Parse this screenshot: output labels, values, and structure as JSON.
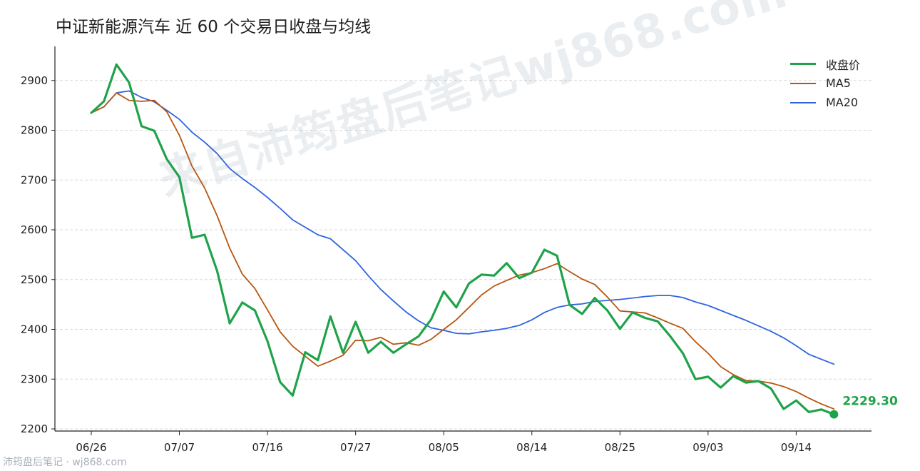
{
  "title": "中证新能源汽车 近 60 个交易日收盘与均线",
  "watermark": "来自沛筠盘后笔记wj868.com",
  "footer": "沛筠盘后笔记 · wj868.com",
  "colors": {
    "close": "#1fa34a",
    "ma5": "#b8560f",
    "ma20": "#2e64e0",
    "grid": "#d9d9d9"
  },
  "chart_data": {
    "type": "line",
    "title": "中证新能源汽车 近 60 个交易日收盘与均线",
    "xlabel": "",
    "ylabel": "",
    "ylim": [
      2190,
      2970
    ],
    "yticks": [
      2200,
      2300,
      2400,
      2500,
      2600,
      2700,
      2800,
      2900
    ],
    "xticks": [
      {
        "i": 0,
        "label": "06/26"
      },
      {
        "i": 7,
        "label": "07/07"
      },
      {
        "i": 14,
        "label": "07/16"
      },
      {
        "i": 21,
        "label": "07/27"
      },
      {
        "i": 28,
        "label": "08/05"
      },
      {
        "i": 35,
        "label": "08/14"
      },
      {
        "i": 42,
        "label": "08/25"
      },
      {
        "i": 49,
        "label": "09/03"
      },
      {
        "i": 56,
        "label": "09/14"
      }
    ],
    "grid": "horizontal dashed",
    "legend_position": "top-right",
    "last_label": "2229.30",
    "series": [
      {
        "name": "收盘价",
        "values": [
          2835,
          2858,
          2932,
          2896,
          2808,
          2799,
          2742,
          2706,
          2584,
          2590,
          2517,
          2412,
          2454,
          2438,
          2376,
          2294,
          2267,
          2354,
          2338,
          2426,
          2353,
          2415,
          2353,
          2375,
          2353,
          2370,
          2386,
          2420,
          2476,
          2444,
          2492,
          2510,
          2508,
          2533,
          2503,
          2514,
          2560,
          2548,
          2449,
          2431,
          2463,
          2438,
          2401,
          2434,
          2423,
          2416,
          2386,
          2352,
          2300,
          2305,
          2283,
          2306,
          2293,
          2296,
          2281,
          2240,
          2257,
          2234,
          2239,
          2229.3
        ]
      },
      {
        "name": "MA5",
        "values": [
          2835,
          2847,
          2875,
          2860,
          2858,
          2860,
          2837,
          2790,
          2728,
          2684,
          2628,
          2563,
          2511,
          2482,
          2439,
          2395,
          2366,
          2346,
          2326,
          2336,
          2348,
          2378,
          2377,
          2384,
          2370,
          2373,
          2368,
          2380,
          2400,
          2419,
          2444,
          2469,
          2487,
          2498,
          2509,
          2514,
          2522,
          2532,
          2516,
          2501,
          2490,
          2465,
          2437,
          2435,
          2433,
          2423,
          2412,
          2402,
          2375,
          2352,
          2325,
          2309,
          2297,
          2296,
          2292,
          2285,
          2275,
          2262,
          2250,
          2240
        ]
      },
      {
        "name": "MA20",
        "values": [
          2835,
          2847,
          2875,
          2879,
          2866,
          2857,
          2840,
          2822,
          2796,
          2776,
          2753,
          2723,
          2703,
          2685,
          2665,
          2643,
          2620,
          2605,
          2590,
          2582,
          2560,
          2538,
          2508,
          2480,
          2457,
          2435,
          2417,
          2403,
          2398,
          2392,
          2391,
          2395,
          2398,
          2402,
          2408,
          2419,
          2434,
          2444,
          2449,
          2451,
          2456,
          2458,
          2460,
          2463,
          2466,
          2468,
          2468,
          2464,
          2455,
          2448,
          2438,
          2428,
          2418,
          2407,
          2396,
          2383,
          2367,
          2350,
          2340,
          2330
        ]
      }
    ]
  }
}
